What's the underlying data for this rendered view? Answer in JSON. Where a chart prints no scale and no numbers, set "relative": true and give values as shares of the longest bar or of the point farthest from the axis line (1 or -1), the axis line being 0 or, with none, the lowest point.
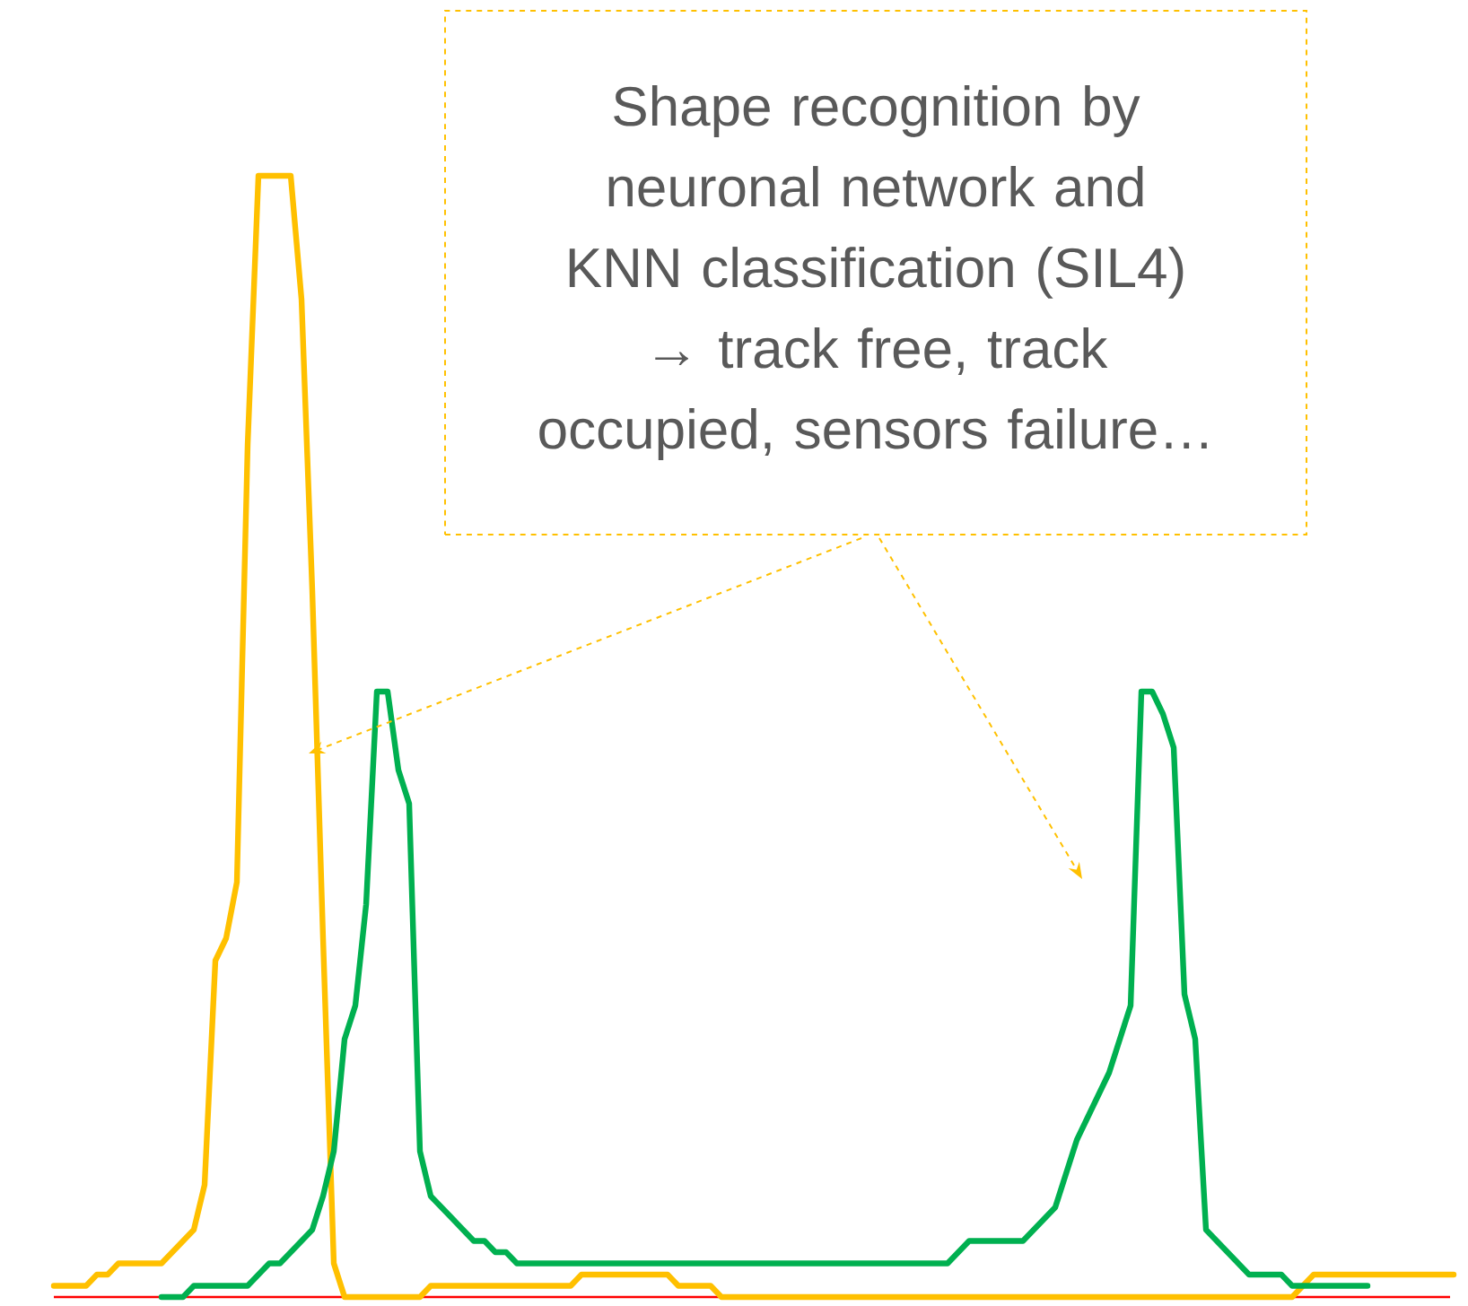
{
  "chart_data": {
    "type": "line",
    "relative": true,
    "marker": "none",
    "line_style": "solid",
    "annotations": [
      "Shape recognition by neuronal network and KNN classification (SIL4) → track free, track occupied, sensors failure…"
    ],
    "categories": [
      null,
      null,
      null,
      null,
      null,
      null,
      null,
      null,
      null,
      null,
      null,
      null,
      null,
      null,
      null,
      null,
      null,
      null,
      null,
      null,
      null,
      null,
      null,
      null,
      null,
      null,
      null,
      null,
      null,
      null,
      null,
      null,
      null,
      null,
      null,
      null,
      null,
      null,
      null,
      null,
      null,
      null,
      null,
      null,
      null,
      null,
      null,
      null,
      null,
      null,
      null,
      null,
      null,
      null,
      null,
      null,
      null,
      null,
      null,
      null,
      null,
      null,
      null,
      null,
      null,
      null,
      null,
      null,
      null,
      null,
      null,
      null,
      null,
      null,
      null,
      null,
      null,
      null,
      null,
      null,
      null,
      null,
      null,
      null,
      null,
      null,
      null,
      null,
      null,
      null,
      null,
      null,
      null,
      null,
      null,
      null,
      null,
      null,
      null,
      null,
      null,
      null,
      null,
      null,
      null,
      null,
      null,
      null,
      null,
      null,
      null,
      null,
      null,
      null,
      null,
      null,
      null,
      null,
      null,
      null,
      null,
      null,
      null,
      null,
      null,
      null,
      null,
      null,
      null,
      null,
      null
    ],
    "series": [
      {
        "color": "#ffc000",
        "values": [
          0.01,
          0.01,
          0.01,
          0.01,
          0.02,
          0.02,
          0.03,
          0.03,
          0.03,
          0.03,
          0.03,
          0.04,
          0.05,
          0.06,
          0.1,
          0.3,
          0.32,
          0.37,
          0.76,
          1,
          1,
          1,
          1,
          0.89,
          0.63,
          0.32,
          0.03,
          0,
          0,
          0,
          0,
          0,
          0,
          0,
          0,
          0.01,
          0.01,
          0.01,
          0.01,
          0.01,
          0.01,
          0.01,
          0.01,
          0.01,
          0.01,
          0.01,
          0.01,
          0.01,
          0.01,
          0.02,
          0.02,
          0.02,
          0.02,
          0.02,
          0.02,
          0.02,
          0.02,
          0.02,
          0.01,
          0.01,
          0.01,
          0.01,
          0,
          0,
          0,
          0,
          0,
          0,
          0,
          0,
          0,
          0,
          0,
          0,
          0,
          0,
          0,
          0,
          0,
          0,
          0,
          0,
          0,
          0,
          0,
          0,
          0,
          0,
          0,
          0,
          0,
          0,
          0,
          0,
          0,
          0,
          0,
          0,
          0,
          0,
          0,
          0,
          0,
          0,
          0,
          0,
          0,
          0,
          0,
          0,
          0,
          0,
          0,
          0,
          0,
          0,
          0.01,
          0.02,
          0.02,
          0.02,
          0.02,
          0.02,
          0.02,
          0.02,
          0.02,
          0.02,
          0.02,
          0.02,
          0.02,
          0.02,
          0.02
        ]
      },
      {
        "color": "#00b050",
        "values": [
          null,
          null,
          null,
          null,
          null,
          null,
          null,
          null,
          null,
          null,
          0,
          0,
          0,
          0.01,
          0.01,
          0.01,
          0.01,
          0.01,
          0.01,
          0.02,
          0.03,
          0.03,
          0.04,
          0.05,
          0.06,
          0.09,
          0.13,
          0.23,
          0.26,
          0.35,
          0.54,
          0.54,
          0.47,
          0.44,
          0.13,
          0.09,
          0.08,
          0.07,
          0.06,
          0.05,
          0.05,
          0.04,
          0.04,
          0.03,
          0.03,
          0.03,
          0.03,
          0.03,
          0.03,
          0.03,
          0.03,
          0.03,
          0.03,
          0.03,
          0.03,
          0.03,
          0.03,
          0.03,
          0.03,
          0.03,
          0.03,
          0.03,
          0.03,
          0.03,
          0.03,
          0.03,
          0.03,
          0.03,
          0.03,
          0.03,
          0.03,
          0.03,
          0.03,
          0.03,
          0.03,
          0.03,
          0.03,
          0.03,
          0.03,
          0.03,
          0.03,
          0.03,
          0.03,
          0.03,
          0.04,
          0.05,
          0.05,
          0.05,
          0.05,
          0.05,
          0.05,
          0.06,
          0.07,
          0.08,
          0.11,
          0.14,
          0.16,
          0.18,
          0.2,
          0.23,
          0.26,
          0.54,
          0.54,
          0.52,
          0.49,
          0.27,
          0.23,
          0.06,
          0.05,
          0.04,
          0.03,
          0.02,
          0.02,
          0.02,
          0.02,
          0.01,
          0.01,
          0.01,
          0.01,
          0.01,
          0.01,
          0.01,
          0.01,
          null,
          null,
          null,
          null,
          null,
          null,
          null,
          null
        ]
      }
    ]
  }
}
